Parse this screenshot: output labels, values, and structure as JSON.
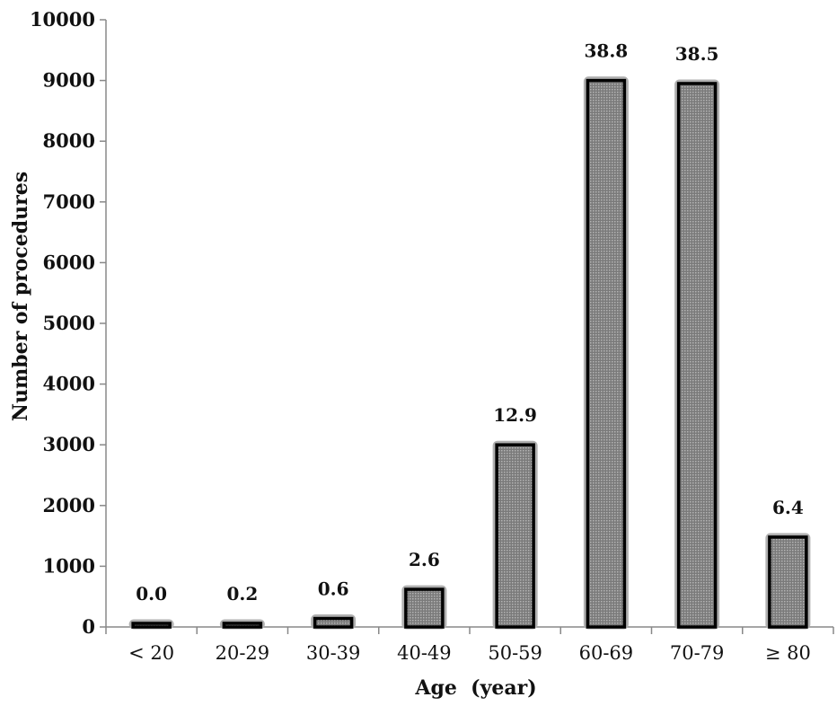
{
  "chart_data": {
    "type": "bar",
    "title": "",
    "xlabel": "Age  (year)",
    "ylabel": "Number of procedures",
    "ylim": [
      0,
      10000
    ],
    "yticks": [
      0,
      1000,
      2000,
      3000,
      4000,
      5000,
      6000,
      7000,
      8000,
      9000,
      10000
    ],
    "categories": [
      "< 20",
      "20-29",
      "30-39",
      "40-49",
      "50-59",
      "60-69",
      "70-79",
      "≥ 80"
    ],
    "values": [
      20,
      60,
      140,
      620,
      3000,
      9000,
      8950,
      1480
    ],
    "data_labels": [
      "0.0",
      "0.2",
      "0.6",
      "2.6",
      "12.9",
      "38.8",
      "38.5",
      "6.4"
    ],
    "grid": false,
    "legend": "none",
    "colors": {
      "bar_fill": "#8c8c8c",
      "bar_stroke": "#000000",
      "bar_halo": "#b0b0b0",
      "axis": "#888888"
    }
  }
}
